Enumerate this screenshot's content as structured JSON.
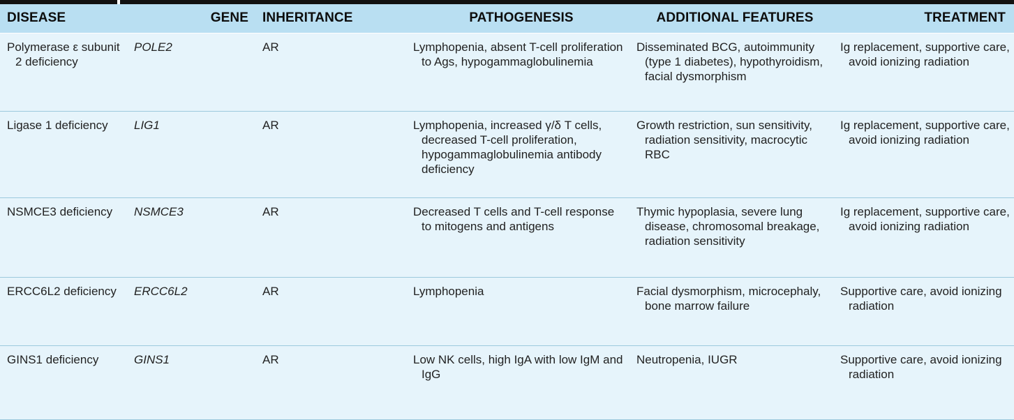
{
  "columns": {
    "disease": "DISEASE",
    "gene": "GENE",
    "inheritance": "INHERITANCE",
    "pathogenesis": "PATHOGENESIS",
    "additional_features": "ADDITIONAL FEATURES",
    "treatment": "TREATMENT"
  },
  "rows": [
    {
      "disease": "Polymerase ε subunit 2 deficiency",
      "gene": "POLE2",
      "inheritance": "AR",
      "pathogenesis": "Lymphopenia, absent T-cell proliferation to Ags, hypogammaglobulinemia",
      "additional_features": "Disseminated BCG, autoimmunity (type 1 diabetes), hypothyroidism, facial dysmorphism",
      "treatment": "Ig replacement, supportive care, avoid ionizing radiation"
    },
    {
      "disease": "Ligase 1 deficiency",
      "gene": "LIG1",
      "inheritance": "AR",
      "pathogenesis": "Lymphopenia, increased γ/δ T cells, decreased T-cell proliferation, hypogammaglobulinemia antibody deficiency",
      "additional_features": "Growth restriction, sun sensitivity, radiation sensitivity, macrocytic RBC",
      "treatment": "Ig replacement, supportive care, avoid ionizing radiation"
    },
    {
      "disease": "NSMCE3 deficiency",
      "gene": "NSMCE3",
      "inheritance": "AR",
      "pathogenesis": "Decreased T cells and T-cell response to mitogens and antigens",
      "additional_features": "Thymic hypoplasia, severe lung disease, chromosomal breakage, radiation sensitivity",
      "treatment": "Ig replacement, supportive care, avoid ionizing radiation"
    },
    {
      "disease": "ERCC6L2 deficiency",
      "gene": "ERCC6L2",
      "inheritance": "AR",
      "pathogenesis": "Lymphopenia",
      "additional_features": "Facial dysmorphism, microcephaly, bone marrow failure",
      "treatment": "Supportive care, avoid ionizing radiation"
    },
    {
      "disease": "GINS1 deficiency",
      "gene": "GINS1",
      "inheritance": "AR",
      "pathogenesis": "Low NK cells, high IgA with low IgM and IgG",
      "additional_features": "Neutropenia, IUGR",
      "treatment": "Supportive care, avoid ionizing radiation"
    }
  ],
  "colors": {
    "header_bg": "#b9dff2",
    "row_bg": "#e6f4fb",
    "row_divider": "#9cc9dd",
    "top_rule": "#111111"
  }
}
